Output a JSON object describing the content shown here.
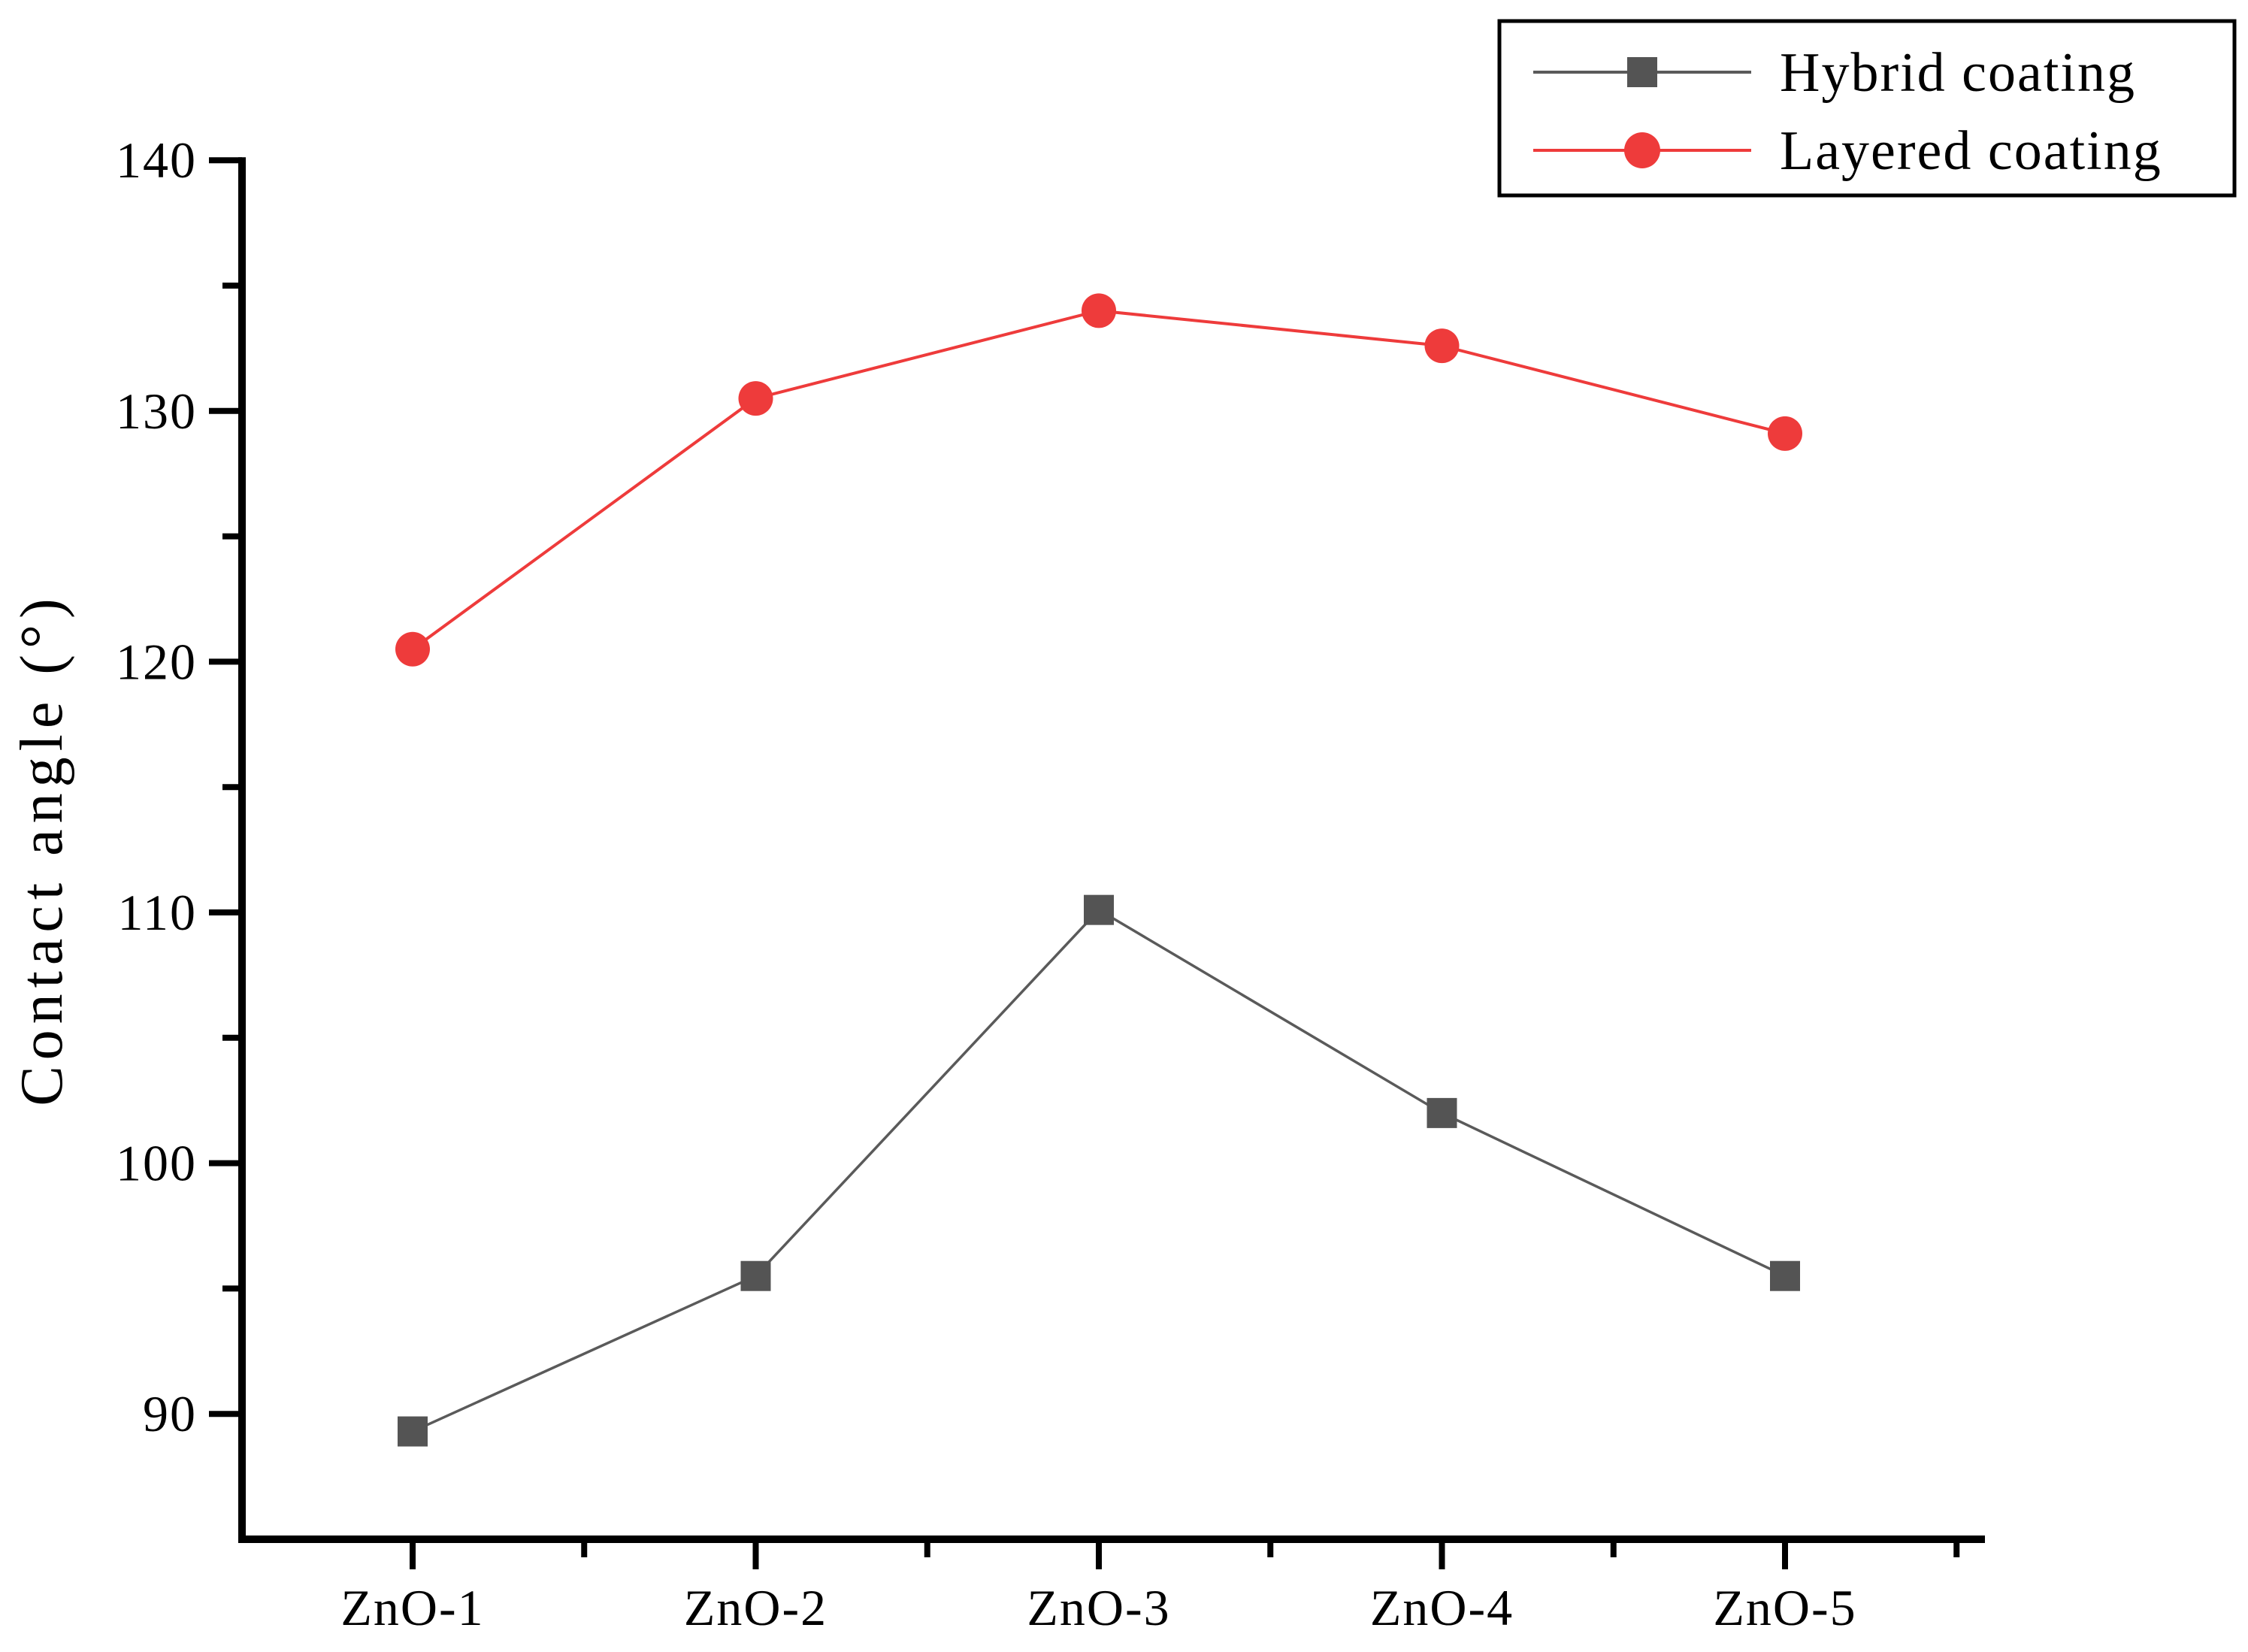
{
  "chart_data": {
    "type": "line",
    "title": "",
    "xlabel": "",
    "ylabel": "Contact angle (°)",
    "categories": [
      "ZnO-1",
      "ZnO-2",
      "ZnO-3",
      "ZnO-4",
      "ZnO-5"
    ],
    "series": [
      {
        "name": "Hybrid coating",
        "marker": "square",
        "color": "#545454",
        "line_color": "#5a5a5a",
        "values": [
          89.3,
          95.5,
          110.1,
          102.0,
          95.5
        ]
      },
      {
        "name": "Layered coating",
        "marker": "circle",
        "color": "#EE3B3B",
        "line_color": "#EE3B3B",
        "values": [
          120.5,
          130.5,
          134.0,
          132.6,
          129.1
        ]
      }
    ],
    "ylim": [
      85,
      140
    ],
    "y_major_ticks": [
      90,
      100,
      110,
      120,
      130,
      140
    ],
    "y_minor_ticks": [
      95,
      105,
      115,
      125,
      135
    ],
    "grid": "off",
    "legend_position": "top-right",
    "axis_color": "#000000",
    "background_color": "#ffffff"
  }
}
